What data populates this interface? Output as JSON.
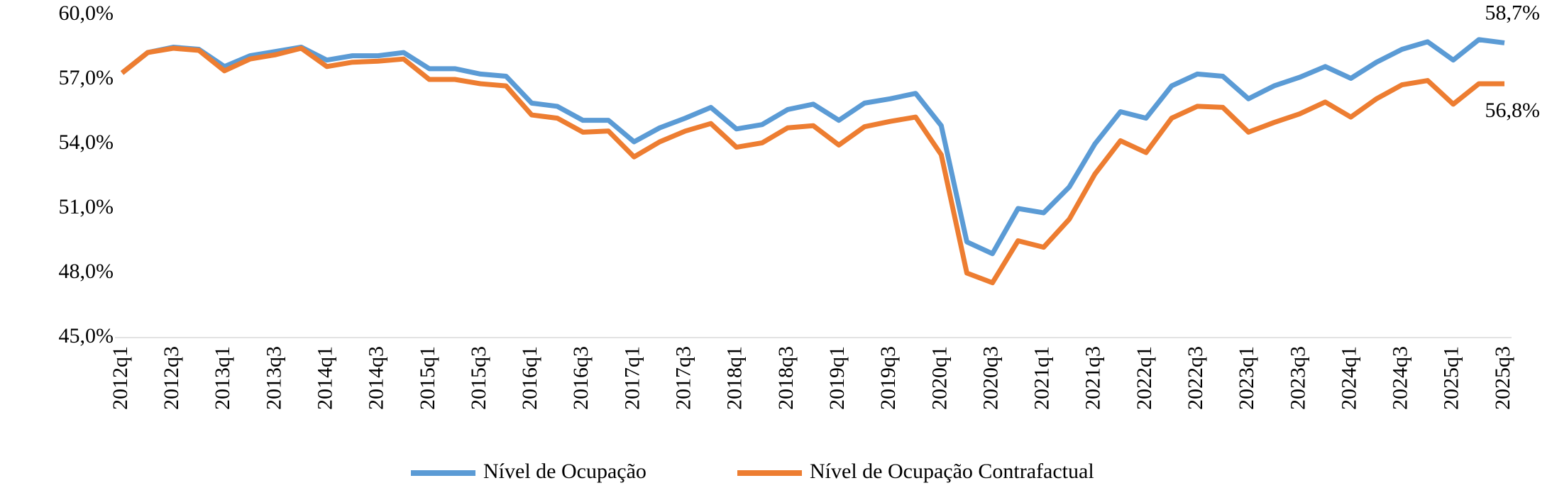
{
  "chart_data": {
    "type": "line",
    "categories": [
      "2012q1",
      null,
      "2012q3",
      null,
      "2013q1",
      null,
      "2013q3",
      null,
      "2014q1",
      null,
      "2014q3",
      null,
      "2015q1",
      null,
      "2015q3",
      null,
      "2016q1",
      null,
      "2016q3",
      null,
      "2017q1",
      null,
      "2017q3",
      null,
      "2018q1",
      null,
      "2018q3",
      null,
      "2019q1",
      null,
      "2019q3",
      null,
      "2020q1",
      null,
      "2020q3",
      null,
      "2021q1",
      null,
      "2021q3",
      null,
      "2022q1",
      null,
      "2022q3",
      null,
      "2023q1",
      null,
      "2023q3",
      null,
      "2024q1",
      null,
      "2024q3",
      null,
      "2025q1",
      null,
      "2025q3"
    ],
    "series": [
      {
        "name": "Nível de Ocupação",
        "color": "#5b9bd5",
        "values": [
          57.3,
          58.25,
          58.5,
          58.4,
          57.6,
          58.1,
          58.3,
          58.5,
          57.9,
          58.1,
          58.1,
          58.25,
          57.5,
          57.5,
          57.25,
          57.15,
          55.9,
          55.75,
          55.1,
          55.1,
          54.1,
          54.75,
          55.2,
          55.7,
          54.7,
          54.9,
          55.6,
          55.85,
          55.1,
          55.9,
          56.1,
          56.35,
          54.85,
          49.45,
          48.9,
          51.0,
          50.8,
          52.0,
          54.0,
          55.5,
          55.2,
          56.7,
          57.25,
          57.15,
          56.1,
          56.7,
          57.1,
          57.6,
          57.05,
          57.8,
          58.4,
          58.75,
          57.9,
          58.85,
          58.7
        ],
        "value_labels": [
          null,
          null,
          null,
          null,
          null,
          null,
          null,
          null,
          null,
          null,
          null,
          null,
          null,
          null,
          null,
          null,
          null,
          null,
          null,
          null,
          null,
          null,
          null,
          null,
          null,
          null,
          null,
          null,
          null,
          null,
          null,
          null,
          null,
          null,
          null,
          null,
          null,
          null,
          null,
          null,
          null,
          null,
          null,
          null,
          null,
          null,
          null,
          null,
          null,
          null,
          null,
          null,
          null,
          null,
          "58,7%"
        ]
      },
      {
        "name": "Nível de Ocupação Contrafactual",
        "color": "#ed7d31",
        "values": [
          57.3,
          58.25,
          58.45,
          58.35,
          57.4,
          57.95,
          58.15,
          58.45,
          57.6,
          57.8,
          57.85,
          57.95,
          57.0,
          57.0,
          56.8,
          56.7,
          55.35,
          55.2,
          54.55,
          54.6,
          53.4,
          54.1,
          54.6,
          54.95,
          53.85,
          54.05,
          54.75,
          54.85,
          53.95,
          54.8,
          55.05,
          55.25,
          53.5,
          48.0,
          47.55,
          49.5,
          49.2,
          50.5,
          52.6,
          54.15,
          53.6,
          55.2,
          55.75,
          55.7,
          54.55,
          55.0,
          55.4,
          55.95,
          55.25,
          56.1,
          56.75,
          56.95,
          55.85,
          56.8,
          56.8
        ],
        "value_labels": [
          null,
          null,
          null,
          null,
          null,
          null,
          null,
          null,
          null,
          null,
          null,
          null,
          null,
          null,
          null,
          null,
          null,
          null,
          null,
          null,
          null,
          null,
          null,
          null,
          null,
          null,
          null,
          null,
          null,
          null,
          null,
          null,
          null,
          null,
          null,
          null,
          null,
          null,
          null,
          null,
          null,
          null,
          null,
          null,
          null,
          null,
          null,
          null,
          null,
          null,
          null,
          null,
          null,
          null,
          "56,8%"
        ]
      }
    ],
    "ylim": [
      45,
      60
    ],
    "yticks": [
      {
        "value": 45,
        "label": "45,0%"
      },
      {
        "value": 48,
        "label": "48,0%"
      },
      {
        "value": 51,
        "label": "51,0%"
      },
      {
        "value": 54,
        "label": "54,0%"
      },
      {
        "value": 57,
        "label": "57,0%"
      },
      {
        "value": 60,
        "label": "60,0%"
      }
    ],
    "grid": false,
    "legend": "bottom"
  }
}
